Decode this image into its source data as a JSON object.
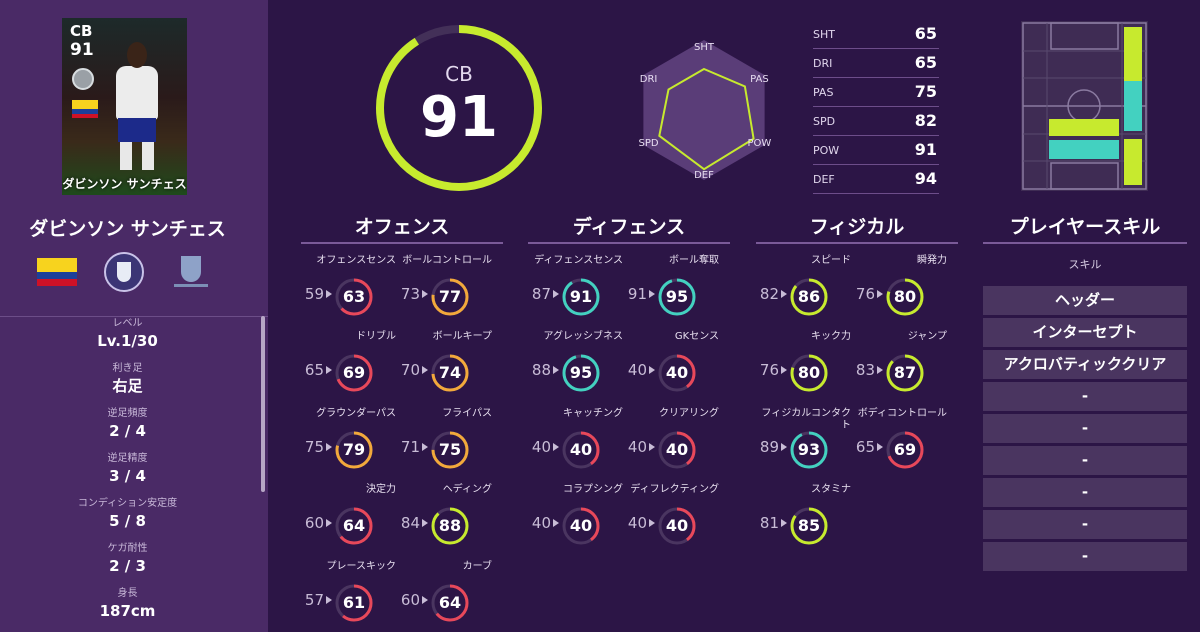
{
  "card": {
    "position": "CB",
    "overall": "91",
    "name": "ダビンソン サンチェス"
  },
  "player": {
    "name": "ダビンソン サンチェス"
  },
  "emblems": [
    "colombia-flag",
    "club-emblem",
    "league-emblem"
  ],
  "info": [
    {
      "label": "レベル",
      "value": "Lv.1/30"
    },
    {
      "label": "利き足",
      "value": "右足"
    },
    {
      "label": "逆足頻度",
      "value": "2 / 4"
    },
    {
      "label": "逆足精度",
      "value": "3 / 4"
    },
    {
      "label": "コンディション安定度",
      "value": "5 / 8"
    },
    {
      "label": "ケガ耐性",
      "value": "2 / 3"
    },
    {
      "label": "身長",
      "value": "187cm"
    }
  ],
  "overall": {
    "position": "CB",
    "value": "91",
    "ratio": 0.91
  },
  "radar": {
    "labels": [
      "SHT",
      "PAS",
      "POW",
      "DEF",
      "SPD",
      "DRI"
    ],
    "values": [
      65,
      75,
      91,
      94,
      82,
      65
    ]
  },
  "stat_summary": [
    {
      "key": "SHT",
      "value": "65"
    },
    {
      "key": "DRI",
      "value": "65"
    },
    {
      "key": "PAS",
      "value": "75"
    },
    {
      "key": "SPD",
      "value": "82"
    },
    {
      "key": "POW",
      "value": "91"
    },
    {
      "key": "DEF",
      "value": "94"
    }
  ],
  "sections": {
    "offense": "オフェンス",
    "defense": "ディフェンス",
    "physical": "フィジカル",
    "skills": "プレイヤースキル"
  },
  "offense_stats": [
    {
      "label": "オフェンスセンス",
      "base": "59",
      "value": "63"
    },
    {
      "label": "ボールコントロール",
      "base": "73",
      "value": "77"
    },
    {
      "label": "ドリブル",
      "base": "65",
      "value": "69"
    },
    {
      "label": "ボールキープ",
      "base": "70",
      "value": "74"
    },
    {
      "label": "グラウンダーパス",
      "base": "75",
      "value": "79"
    },
    {
      "label": "フライパス",
      "base": "71",
      "value": "75"
    },
    {
      "label": "決定力",
      "base": "60",
      "value": "64"
    },
    {
      "label": "ヘディング",
      "base": "84",
      "value": "88"
    },
    {
      "label": "プレースキック",
      "base": "57",
      "value": "61"
    },
    {
      "label": "カーブ",
      "base": "60",
      "value": "64"
    }
  ],
  "defense_stats": [
    {
      "label": "ディフェンスセンス",
      "base": "87",
      "value": "91"
    },
    {
      "label": "ボール奪取",
      "base": "91",
      "value": "95"
    },
    {
      "label": "アグレッシブネス",
      "base": "88",
      "value": "95"
    },
    {
      "label": "GKセンス",
      "base": "40",
      "value": "40"
    },
    {
      "label": "キャッチング",
      "base": "40",
      "value": "40"
    },
    {
      "label": "クリアリング",
      "base": "40",
      "value": "40"
    },
    {
      "label": "コラプシング",
      "base": "40",
      "value": "40"
    },
    {
      "label": "ディフレクティング",
      "base": "40",
      "value": "40"
    }
  ],
  "physical_stats": [
    {
      "label": "スピード",
      "base": "82",
      "value": "86"
    },
    {
      "label": "瞬発力",
      "base": "76",
      "value": "80"
    },
    {
      "label": "キック力",
      "base": "76",
      "value": "80"
    },
    {
      "label": "ジャンプ",
      "base": "83",
      "value": "87"
    },
    {
      "label": "フィジカルコンタクト",
      "base": "89",
      "value": "93"
    },
    {
      "label": "ボディコントロール",
      "base": "65",
      "value": "69"
    },
    {
      "label": "スタミナ",
      "base": "81",
      "value": "85"
    }
  ],
  "skills": {
    "header": "スキル",
    "items": [
      "ヘッダー",
      "インターセプト",
      "アクロバティッククリア",
      "-",
      "-",
      "-",
      "-",
      "-",
      "-"
    ]
  },
  "colors": {
    "bg": "#2c1546",
    "panel": "#4a2a66",
    "lime": "#c7ea2e",
    "teal": "#43d1c0",
    "orange": "#f2a93b",
    "red": "#e8485a",
    "skill_bg": "#4a3560"
  }
}
